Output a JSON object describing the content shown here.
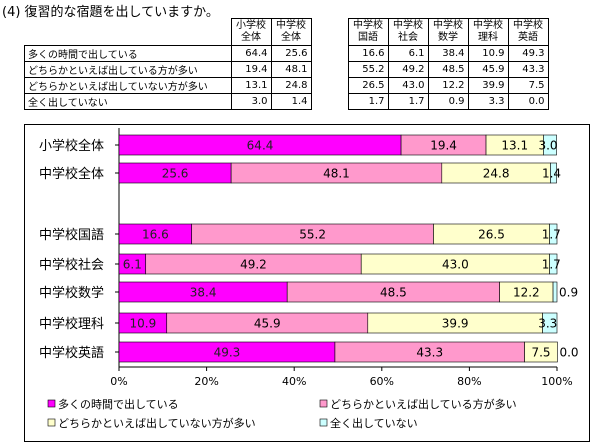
{
  "title": "(4) 復習的な宿題を出していますか。",
  "table": {
    "columns": [
      "小学校\n全体",
      "中学校\n全体",
      "",
      "中学校\n国語",
      "中学校\n社会",
      "中学校\n数学",
      "中学校\n理科",
      "中学校\n英語"
    ],
    "rows": [
      {
        "label": "多くの時間で出している",
        "values": [
          "64.4",
          "25.6",
          "",
          "16.6",
          "6.1",
          "38.4",
          "10.9",
          "49.3"
        ]
      },
      {
        "label": "どちらかといえば出している方が多い",
        "values": [
          "19.4",
          "48.1",
          "",
          "55.2",
          "49.2",
          "48.5",
          "45.9",
          "43.3"
        ]
      },
      {
        "label": "どちらかといえば出していない方が多い",
        "values": [
          "13.1",
          "24.8",
          "",
          "26.5",
          "43.0",
          "12.2",
          "39.9",
          "7.5"
        ]
      },
      {
        "label": "全く出していない",
        "values": [
          "3.0",
          "1.4",
          "",
          "1.7",
          "1.7",
          "0.9",
          "3.3",
          "0.0"
        ]
      }
    ]
  },
  "chart_data": {
    "type": "bar",
    "orientation": "horizontal",
    "stacked": true,
    "categories": [
      "小学校全体",
      "中学校全体",
      "中学校国語",
      "中学校社会",
      "中学校数学",
      "中学校理科",
      "中学校英語"
    ],
    "series": [
      {
        "name": "多くの時間で出している",
        "color": "#ff00ff",
        "values": [
          64.4,
          25.6,
          16.6,
          6.1,
          38.4,
          10.9,
          49.3
        ]
      },
      {
        "name": "どちらかといえば出している方が多い",
        "color": "#ff99cc",
        "values": [
          19.4,
          48.1,
          55.2,
          49.2,
          48.5,
          45.9,
          43.3
        ]
      },
      {
        "name": "どちらかといえば出していない方が多い",
        "color": "#ffffcc",
        "values": [
          13.1,
          24.8,
          26.5,
          43.0,
          12.2,
          39.9,
          7.5
        ]
      },
      {
        "name": "全く出していない",
        "color": "#ccffff",
        "values": [
          3.0,
          1.4,
          1.7,
          1.7,
          0.9,
          3.3,
          0.0
        ]
      }
    ],
    "data_labels": [
      [
        "64.4",
        "19.4",
        "13.1",
        "3.0"
      ],
      [
        "25.6",
        "48.1",
        "24.8",
        "1.4"
      ],
      [
        "16.6",
        "55.2",
        "26.5",
        "1.7"
      ],
      [
        "6.1",
        "49.2",
        "43.0",
        "1.7"
      ],
      [
        "38.4",
        "48.5",
        "12.2",
        "0.9"
      ],
      [
        "10.9",
        "45.9",
        "39.9",
        "3.3"
      ],
      [
        "49.3",
        "43.3",
        "7.5",
        "0.0"
      ]
    ],
    "xlim": [
      0,
      100
    ],
    "xticks": [
      "0%",
      "20%",
      "40%",
      "60%",
      "80%",
      "100%"
    ],
    "legend_position": "bottom",
    "grid": false
  }
}
